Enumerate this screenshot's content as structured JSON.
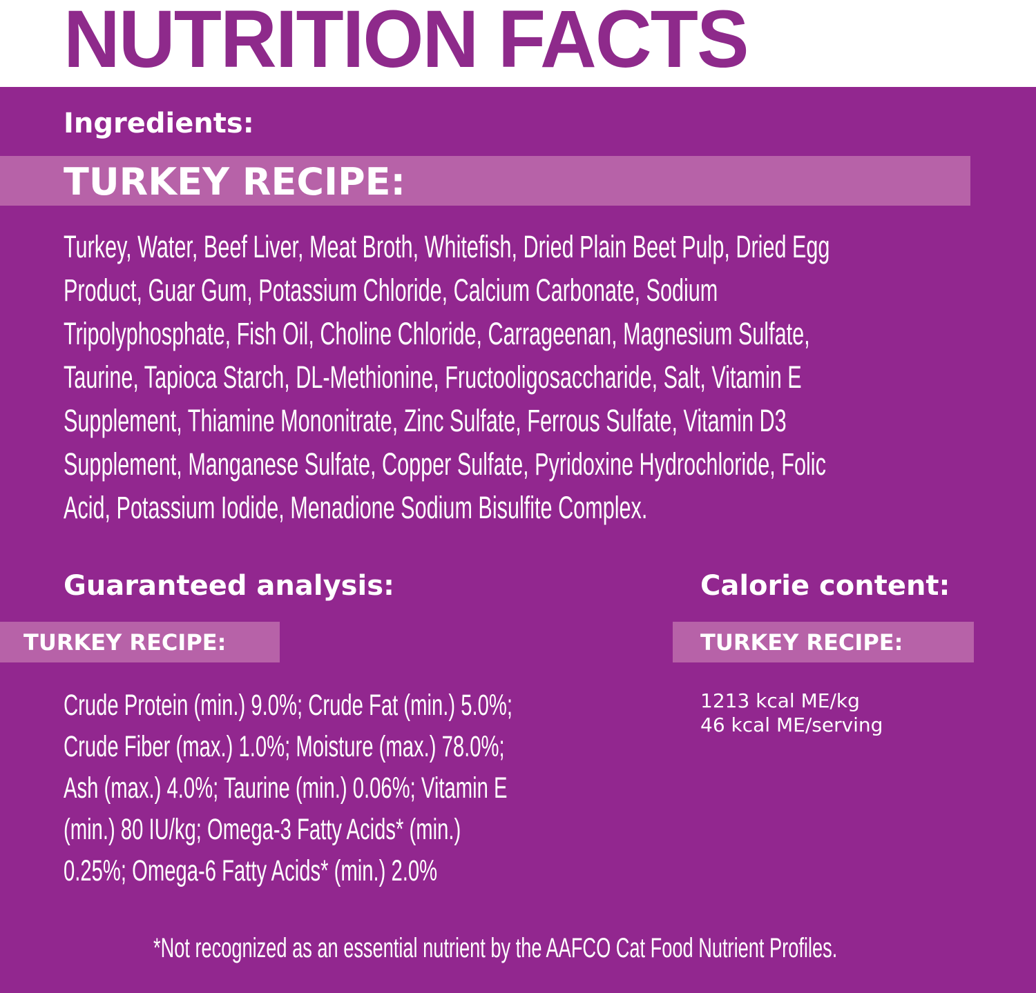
{
  "title": "NUTRITION FACTS",
  "colors": {
    "title": "#8e2a8b",
    "background": "#92278f",
    "band": "#b762a8",
    "text": "#ffffff"
  },
  "ingredients": {
    "heading": "Ingredients:",
    "recipe": "TURKEY RECIPE:",
    "lines": [
      "Turkey, Water, Beef Liver, Meat Broth, Whitefish, Dried Plain Beet Pulp, Dried Egg",
      "Product, Guar Gum, Potassium Chloride, Calcium Carbonate, Sodium",
      "Tripolyphosphate, Fish Oil, Choline Chloride, Carrageenan, Magnesium Sulfate,",
      "Taurine, Tapioca Starch, DL-Methionine, Fructooligosaccharide, Salt, Vitamin E",
      "Supplement, Thiamine Mononitrate, Zinc Sulfate, Ferrous Sulfate, Vitamin D3",
      "Supplement, Manganese Sulfate, Copper Sulfate, Pyridoxine Hydrochloride, Folic",
      "Acid, Potassium Iodide, Menadione Sodium Bisulfite Complex."
    ]
  },
  "analysis": {
    "heading": "Guaranteed analysis:",
    "recipe": "TURKEY RECIPE:",
    "lines": [
      "Crude Protein (min.) 9.0%; Crude Fat (min.) 5.0%;",
      "Crude Fiber (max.) 1.0%; Moisture (max.) 78.0%;",
      "Ash (max.) 4.0%; Taurine (min.) 0.06%; Vitamin E",
      "(min.) 80 IU/kg; Omega-3 Fatty Acids* (min.)",
      "0.25%; Omega-6 Fatty Acids* (min.) 2.0%"
    ]
  },
  "calories": {
    "heading": "Calorie content:",
    "recipe": "TURKEY RECIPE:",
    "per_kg": "1213 kcal ME/kg",
    "per_serving": "46 kcal ME/serving"
  },
  "footnote": "*Not recognized as an essential nutrient by the AAFCO Cat Food Nutrient Profiles."
}
